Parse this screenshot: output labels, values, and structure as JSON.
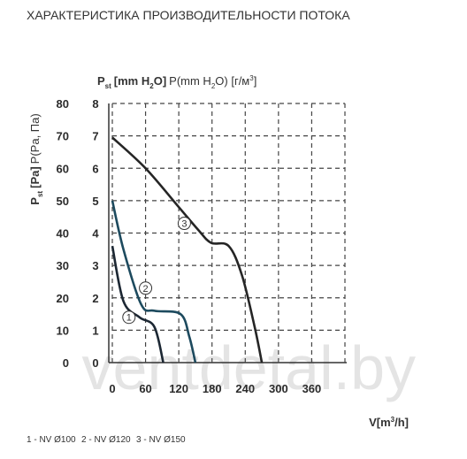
{
  "chart_data": {
    "type": "line",
    "title": "ХАРАКТЕРИСТИКА ПРОИЗВОДИТЕЛЬНОСТИ ПОТОКА",
    "y_label": [
      "P",
      "st",
      "[Pa]",
      "P(Pa, Па)"
    ],
    "y2_label": [
      "P",
      "st",
      "[mm H",
      "2",
      "O]",
      "P(mm H",
      "2",
      "O) [г/м",
      "3",
      "]"
    ],
    "x_label": [
      "V[m",
      "3",
      "/h]"
    ],
    "xlim": [
      0,
      420
    ],
    "xticks": [
      0,
      60,
      120,
      180,
      240,
      300,
      360
    ],
    "ylim": [
      0,
      80
    ],
    "yticks": [
      0,
      10,
      20,
      30,
      40,
      50,
      60,
      70,
      80
    ],
    "y2lim": [
      0,
      8
    ],
    "y2ticks": [
      0,
      1,
      2,
      3,
      4,
      5,
      6,
      7,
      8
    ],
    "grid": true,
    "series": [
      {
        "name": "1 - NV Ø100",
        "marker_label": "1",
        "color": "#1c2733",
        "x": [
          0,
          20,
          49,
          76,
          92
        ],
        "values": [
          36,
          19,
          14,
          11,
          0
        ]
      },
      {
        "name": "2 - NV Ø120",
        "marker_label": "2",
        "color": "#1d4a5e",
        "x": [
          0,
          20,
          52,
          76,
          123,
          139,
          150
        ],
        "values": [
          50,
          35,
          18,
          16,
          15,
          8,
          0
        ]
      },
      {
        "name": "3 - NV Ø150",
        "marker_label": "3",
        "color": "#252525",
        "x": [
          0,
          60,
          120,
          155,
          178,
          210,
          234,
          257,
          270
        ],
        "values": [
          69.5,
          60,
          48,
          41,
          37,
          36,
          27,
          11,
          0
        ]
      }
    ],
    "watermark": "ventdetal.by"
  }
}
